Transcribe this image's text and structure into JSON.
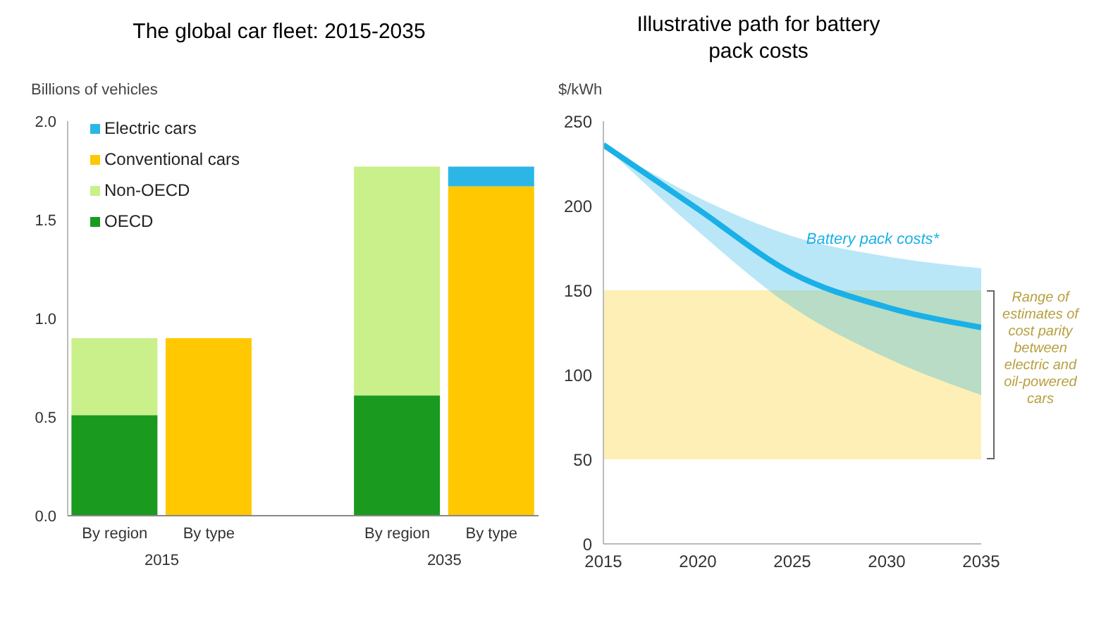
{
  "chart_data": [
    {
      "type": "bar",
      "title": "The global car fleet: 2015-2035",
      "ylabel": "Billions of vehicles",
      "categories": [
        "By region",
        "By type",
        null,
        "By region",
        "By type"
      ],
      "stacked": true,
      "series": [
        {
          "name": "OECD",
          "color": "#1a9a1f",
          "values": [
            0.51,
            null,
            null,
            0.61,
            null
          ]
        },
        {
          "name": "Non-OECD",
          "color": "#c9f08a",
          "values": [
            0.39,
            null,
            null,
            1.16,
            null
          ]
        },
        {
          "name": "Conventional cars",
          "color": "#ffc800",
          "values": [
            null,
            0.9,
            null,
            null,
            1.67
          ]
        },
        {
          "name": "Electric cars",
          "color": "#2bb6e6",
          "values": [
            null,
            null,
            null,
            null,
            0.1
          ]
        }
      ],
      "ylim": [
        0,
        2
      ],
      "yticks": [
        {
          "value": 0,
          "label": "0.0"
        },
        {
          "value": 0.5,
          "label": "0.5"
        },
        {
          "value": 1,
          "label": "1.0"
        },
        {
          "value": 1.5,
          "label": "1.5"
        },
        {
          "value": 2,
          "label": "2.0"
        }
      ],
      "legend": "top left",
      "annotations": [
        "2015",
        "2035"
      ]
    },
    {
      "type": "line",
      "title": "Illustrative path for battery pack costs",
      "ylabel": "$/kWh",
      "x": [
        2015,
        2020,
        2025,
        2030,
        2035
      ],
      "series": [
        {
          "name": "Battery pack costs*",
          "color": "#1ab0e8",
          "values": [
            236,
            198,
            160,
            140,
            128
          ],
          "lower": [
            236,
            185,
            140,
            110,
            88
          ],
          "upper": [
            236,
            205,
            182,
            170,
            163
          ]
        }
      ],
      "xlim": [
        2015,
        2035
      ],
      "xticks": [
        2015,
        2020,
        2025,
        2030,
        2035
      ],
      "ylim": [
        0,
        250
      ],
      "yticks": [
        0,
        50,
        100,
        150,
        200,
        250
      ],
      "bands": [
        {
          "axis": "y",
          "from": 50,
          "to": 150,
          "label": "Range of estimates of cost parity between electric and oil-powered cars",
          "color": "#fbe27a"
        }
      ]
    }
  ]
}
